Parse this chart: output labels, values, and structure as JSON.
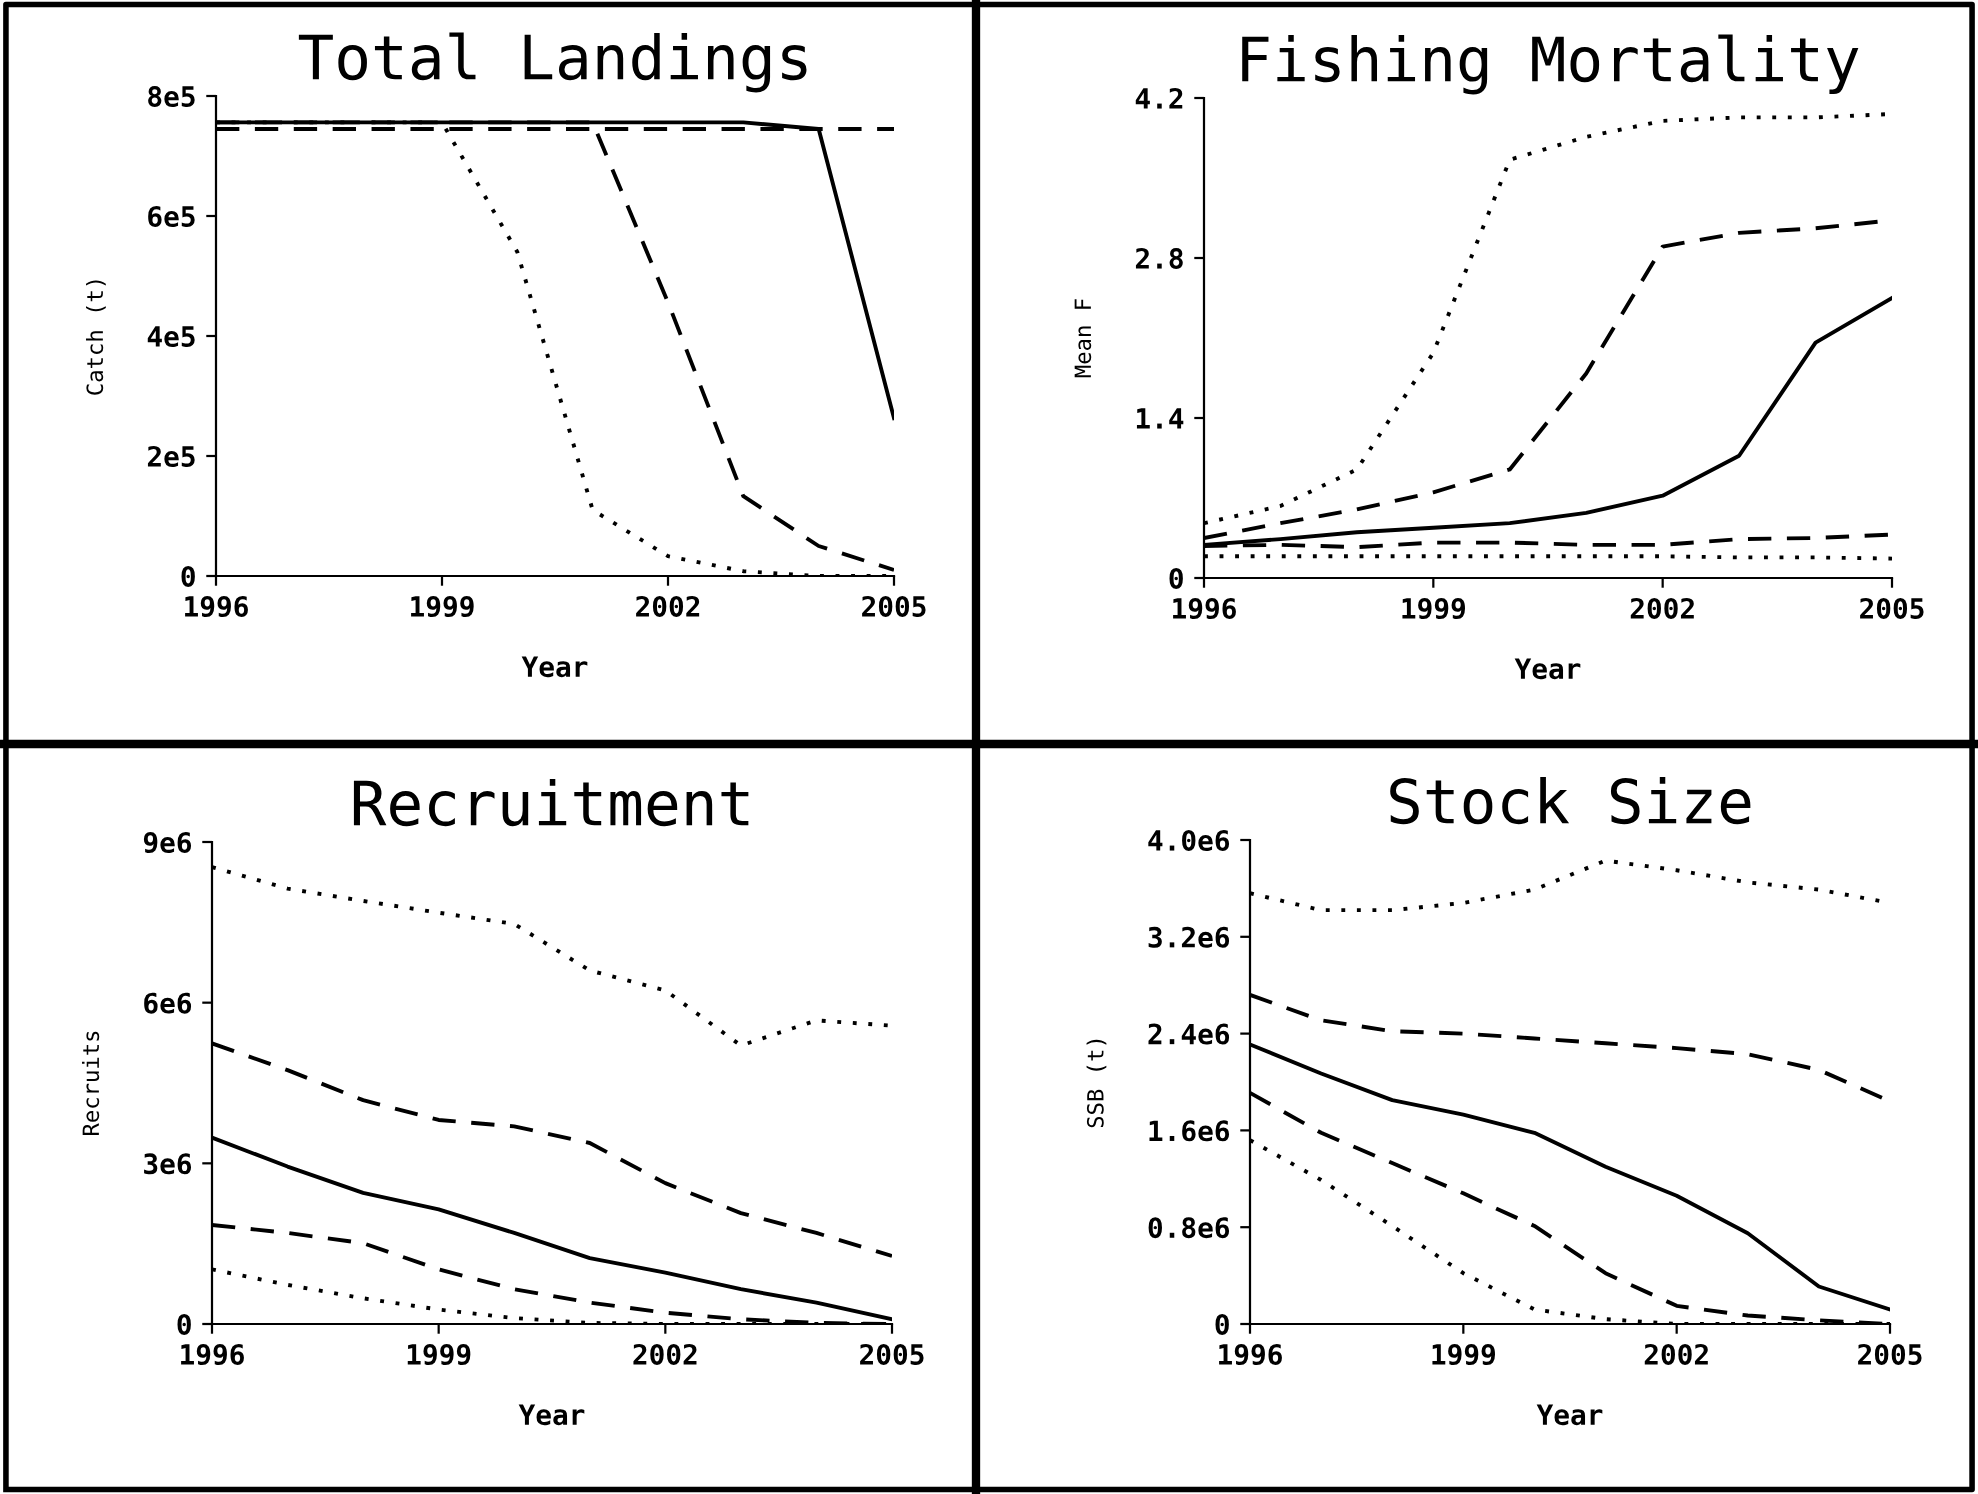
{
  "chart_data": [
    {
      "type": "line",
      "title": "Total Landings",
      "xlabel": "Year",
      "ylabel": "Catch (t)",
      "x": [
        1996,
        1997,
        1998,
        1999,
        2000,
        2001,
        2002,
        2003,
        2004,
        2005
      ],
      "xlim": [
        1996,
        2005
      ],
      "xticks": [
        1996,
        1999,
        2002,
        2005
      ],
      "ylim": [
        0,
        800000
      ],
      "yticks": [
        0,
        {
          "value": 200000,
          "label": "2e5"
        },
        {
          "value": 400000,
          "label": "4e5"
        },
        {
          "value": 600000,
          "label": "6e5"
        },
        {
          "value": 800000,
          "label": "8e5"
        }
      ],
      "series": [
        {
          "color": "#000000",
          "line_style": "dotted",
          "values": [
            756000,
            756000,
            756000,
            756000,
            540000,
            110000,
            33000,
            8000,
            0,
            0
          ]
        },
        {
          "color": "#000000",
          "line_style": "dashed",
          "values": [
            745000,
            745000,
            745000,
            745000,
            745000,
            745000,
            745000,
            745000,
            745000,
            745000
          ]
        },
        {
          "color": "#000000",
          "line_style": "solid",
          "values": [
            756000,
            756000,
            756000,
            756000,
            756000,
            756000,
            756000,
            756000,
            745000,
            263000
          ]
        },
        {
          "color": "#000000",
          "line_style": "dashed",
          "values": [
            756000,
            756000,
            756000,
            756000,
            756000,
            756000,
            456000,
            133000,
            50000,
            10000
          ]
        }
      ]
    },
    {
      "type": "line",
      "title": "Fishing Mortality",
      "xlabel": "Year",
      "ylabel": "Mean F",
      "x": [
        1996,
        1997,
        1998,
        1999,
        2000,
        2001,
        2002,
        2003,
        2004,
        2005
      ],
      "xlim": [
        1996,
        2005
      ],
      "xticks": [
        1996,
        1999,
        2002,
        2005
      ],
      "ylim": [
        0,
        4.2
      ],
      "yticks": [
        0,
        1.4,
        2.8,
        4.2
      ],
      "series": [
        {
          "color": "#000000",
          "line_style": "dotted",
          "values": [
            0.48,
            0.63,
            0.95,
            1.97,
            3.66,
            3.86,
            4.0,
            4.03,
            4.03,
            4.06
          ]
        },
        {
          "color": "#000000",
          "line_style": "dashed",
          "values": [
            0.35,
            0.48,
            0.6,
            0.75,
            0.95,
            1.79,
            2.9,
            3.02,
            3.06,
            3.13
          ]
        },
        {
          "color": "#000000",
          "line_style": "solid",
          "values": [
            0.29,
            0.34,
            0.4,
            0.44,
            0.48,
            0.57,
            0.72,
            1.07,
            2.06,
            2.45
          ]
        },
        {
          "color": "#000000",
          "line_style": "dashed",
          "values": [
            0.28,
            0.29,
            0.27,
            0.31,
            0.31,
            0.29,
            0.29,
            0.34,
            0.35,
            0.38
          ]
        },
        {
          "color": "#000000",
          "line_style": "dotted",
          "values": [
            0.19,
            0.19,
            0.19,
            0.19,
            0.19,
            0.19,
            0.19,
            0.18,
            0.18,
            0.17
          ]
        }
      ]
    },
    {
      "type": "line",
      "title": "Recruitment",
      "xlabel": "Year",
      "ylabel": "Recruits",
      "x": [
        1996,
        1997,
        1998,
        1999,
        2000,
        2001,
        2002,
        2003,
        2004,
        2005
      ],
      "xlim": [
        1996,
        2005
      ],
      "xticks": [
        1996,
        1999,
        2002,
        2005
      ],
      "ylim": [
        0,
        9000000
      ],
      "yticks": [
        0,
        {
          "value": 3000000,
          "label": "3e6"
        },
        {
          "value": 6000000,
          "label": "6e6"
        },
        {
          "value": 9000000,
          "label": "9e6"
        }
      ],
      "series": [
        {
          "color": "#000000",
          "line_style": "dotted",
          "values": [
            8530000,
            8130000,
            7900000,
            7680000,
            7470000,
            6600000,
            6230000,
            5200000,
            5670000,
            5570000
          ]
        },
        {
          "color": "#000000",
          "line_style": "dashed",
          "values": [
            5240000,
            4740000,
            4180000,
            3810000,
            3690000,
            3380000,
            2630000,
            2070000,
            1700000,
            1270000
          ]
        },
        {
          "color": "#000000",
          "line_style": "solid",
          "values": [
            3480000,
            2940000,
            2450000,
            2140000,
            1700000,
            1230000,
            960000,
            650000,
            400000,
            90000
          ]
        },
        {
          "color": "#000000",
          "line_style": "dashed",
          "values": [
            1850000,
            1700000,
            1510000,
            1020000,
            650000,
            400000,
            210000,
            90000,
            20000,
            0
          ]
        },
        {
          "color": "#000000",
          "line_style": "dotted",
          "values": [
            1020000,
            730000,
            480000,
            270000,
            110000,
            20000,
            0,
            0,
            0,
            0
          ]
        }
      ]
    },
    {
      "type": "line",
      "title": "Stock Size",
      "xlabel": "Year",
      "ylabel": "SSB (t)",
      "x": [
        1996,
        1997,
        1998,
        1999,
        2000,
        2001,
        2002,
        2003,
        2004,
        2005
      ],
      "xlim": [
        1996,
        2005
      ],
      "xticks": [
        1996,
        1999,
        2002,
        2005
      ],
      "ylim": [
        0,
        4000000
      ],
      "yticks": [
        0,
        {
          "value": 800000,
          "label": "0.8e6"
        },
        {
          "value": 1600000,
          "label": "1.6e6"
        },
        {
          "value": 2400000,
          "label": "2.4e6"
        },
        {
          "value": 3200000,
          "label": "3.2e6"
        },
        {
          "value": 4000000,
          "label": "4.0e6"
        }
      ],
      "series": [
        {
          "color": "#000000",
          "line_style": "dotted",
          "values": [
            3560000,
            3420000,
            3420000,
            3480000,
            3590000,
            3830000,
            3750000,
            3650000,
            3590000,
            3480000
          ]
        },
        {
          "color": "#000000",
          "line_style": "dashed",
          "values": [
            2720000,
            2510000,
            2420000,
            2400000,
            2360000,
            2320000,
            2280000,
            2230000,
            2100000,
            1840000
          ]
        },
        {
          "color": "#000000",
          "line_style": "solid",
          "values": [
            2310000,
            2070000,
            1850000,
            1730000,
            1580000,
            1300000,
            1060000,
            750000,
            310000,
            120000
          ]
        },
        {
          "color": "#000000",
          "line_style": "dashed",
          "values": [
            1910000,
            1580000,
            1330000,
            1080000,
            810000,
            420000,
            150000,
            70000,
            30000,
            0
          ]
        },
        {
          "color": "#000000",
          "line_style": "dotted",
          "values": [
            1520000,
            1190000,
            810000,
            420000,
            120000,
            40000,
            0,
            0,
            0,
            0
          ]
        }
      ]
    }
  ]
}
